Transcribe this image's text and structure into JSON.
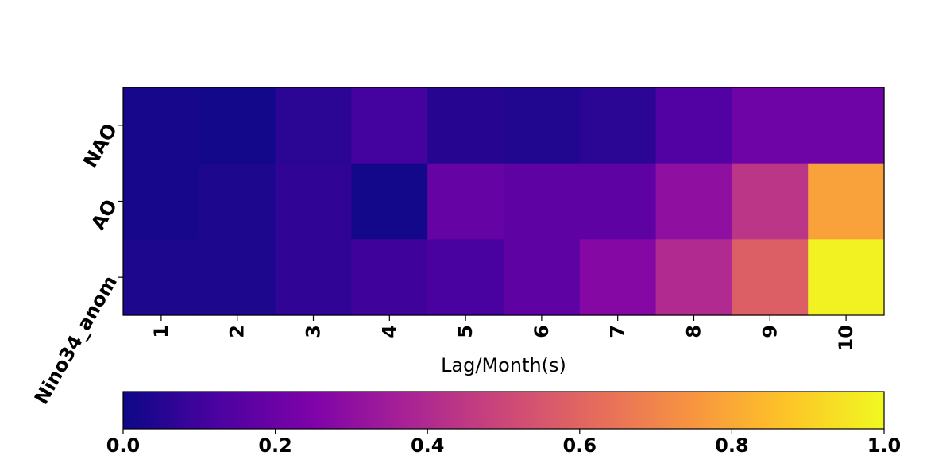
{
  "chart_data": {
    "type": "heatmap",
    "title": "",
    "xlabel": "Lag/Month(s)",
    "ylabel": "",
    "x_categories": [
      "1",
      "2",
      "3",
      "4",
      "5",
      "6",
      "7",
      "8",
      "9",
      "10"
    ],
    "y_categories": [
      "NAO",
      "AO",
      "Nino34_anom"
    ],
    "colormap": "plasma",
    "vmin": 0.0,
    "vmax": 1.0,
    "values": [
      [
        0.02,
        0.01,
        0.06,
        0.11,
        0.05,
        0.04,
        0.06,
        0.14,
        0.21,
        0.21
      ],
      [
        0.02,
        0.03,
        0.07,
        0.01,
        0.19,
        0.17,
        0.17,
        0.3,
        0.44,
        0.78
      ],
      [
        0.03,
        0.03,
        0.07,
        0.1,
        0.12,
        0.17,
        0.27,
        0.4,
        0.58,
        0.98
      ]
    ],
    "colorbar": {
      "orientation": "horizontal",
      "ticks": [
        "0.0",
        "0.2",
        "0.4",
        "0.6",
        "0.8",
        "1.0"
      ],
      "tick_values": [
        0.0,
        0.2,
        0.4,
        0.6,
        0.8,
        1.0
      ]
    }
  }
}
